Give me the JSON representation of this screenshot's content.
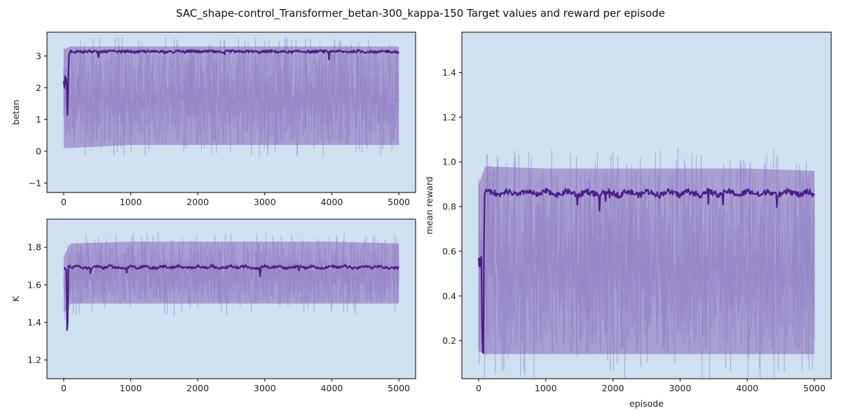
{
  "figure": {
    "title": "SAC_shape-control_Transformer_betan-300_kappa-150 Target values and reward per episode",
    "background": "#ffffff",
    "axes_facecolor": "#cfe0f1",
    "band_color": "#9b89c7",
    "line_color": "#4b1e8a"
  },
  "chart_data": [
    {
      "id": "betan",
      "type": "line",
      "title": "",
      "xlabel": "",
      "ylabel": "betan",
      "xlim": [
        -250,
        5250
      ],
      "ylim": [
        -1.3,
        3.75
      ],
      "xticks": [
        0,
        1000,
        2000,
        3000,
        4000,
        5000
      ],
      "yticks": [
        -1,
        0,
        1,
        2,
        3
      ],
      "series": [
        {
          "role": "mean",
          "x": [
            0,
            10,
            20,
            30,
            40,
            50,
            55,
            60,
            70,
            80,
            90,
            100,
            150,
            200,
            250,
            300,
            400,
            500,
            600,
            700,
            800,
            900,
            1000,
            1100,
            1200,
            1300,
            1400,
            1500,
            1600,
            1700,
            1800,
            1900,
            2000,
            2100,
            2200,
            2300,
            2400,
            2500,
            2600,
            2700,
            2800,
            2900,
            3000,
            3100,
            3200,
            3300,
            3400,
            3500,
            3600,
            3700,
            3800,
            3900,
            4000,
            4100,
            4200,
            4300,
            4400,
            4500,
            4600,
            4700,
            4800,
            4900,
            5000
          ],
          "y": [
            2.2,
            2.0,
            2.35,
            2.1,
            2.3,
            1.6,
            1.15,
            1.3,
            2.4,
            3.05,
            3.1,
            3.15,
            3.12,
            3.15,
            3.14,
            3.13,
            3.15,
            3.12,
            3.14,
            3.15,
            3.13,
            3.15,
            3.14,
            3.12,
            3.15,
            3.13,
            3.15,
            3.14,
            3.12,
            3.15,
            3.13,
            3.15,
            3.14,
            3.13,
            3.15,
            3.12,
            3.14,
            3.15,
            3.13,
            3.14,
            3.15,
            3.12,
            3.14,
            3.15,
            3.13,
            3.14,
            3.12,
            3.15,
            3.14,
            3.13,
            3.15,
            3.14,
            3.12,
            3.15,
            3.13,
            3.14,
            3.15,
            3.13,
            3.14,
            3.12,
            3.15,
            3.14,
            3.13
          ]
        },
        {
          "role": "band",
          "x": [
            0,
            100,
            1000,
            2000,
            3000,
            4000,
            5000
          ],
          "upper": [
            3.2,
            3.3,
            3.3,
            3.3,
            3.3,
            3.3,
            3.3
          ],
          "lower": [
            0.1,
            0.1,
            0.2,
            0.2,
            0.2,
            0.2,
            0.2
          ]
        }
      ]
    },
    {
      "id": "kappa",
      "type": "line",
      "title": "",
      "xlabel": "",
      "ylabel": "K",
      "xlim": [
        -250,
        5250
      ],
      "ylim": [
        1.1,
        1.95
      ],
      "xticks": [
        0,
        1000,
        2000,
        3000,
        4000,
        5000
      ],
      "yticks": [
        1.2,
        1.4,
        1.6,
        1.8
      ],
      "series": [
        {
          "role": "mean",
          "x": [
            0,
            20,
            40,
            50,
            60,
            70,
            80,
            90,
            100,
            200,
            300,
            400,
            500,
            600,
            700,
            800,
            900,
            1000,
            1100,
            1200,
            1300,
            1400,
            1500,
            1600,
            1700,
            1800,
            1900,
            2000,
            2100,
            2200,
            2300,
            2400,
            2500,
            2600,
            2700,
            2800,
            2900,
            3000,
            3100,
            3200,
            3300,
            3400,
            3500,
            3600,
            3700,
            3800,
            3900,
            4000,
            4100,
            4200,
            4300,
            4400,
            4500,
            4600,
            4700,
            4800,
            4900,
            5000
          ],
          "y": [
            1.69,
            1.69,
            1.68,
            1.36,
            1.4,
            1.7,
            1.69,
            1.7,
            1.69,
            1.7,
            1.69,
            1.69,
            1.7,
            1.69,
            1.7,
            1.69,
            1.69,
            1.7,
            1.69,
            1.7,
            1.69,
            1.69,
            1.7,
            1.69,
            1.7,
            1.69,
            1.69,
            1.7,
            1.69,
            1.7,
            1.69,
            1.69,
            1.7,
            1.69,
            1.7,
            1.69,
            1.69,
            1.7,
            1.69,
            1.7,
            1.69,
            1.69,
            1.7,
            1.69,
            1.7,
            1.69,
            1.69,
            1.7,
            1.69,
            1.7,
            1.69,
            1.69,
            1.7,
            1.69,
            1.7,
            1.69,
            1.69,
            1.69
          ]
        },
        {
          "role": "band",
          "x": [
            0,
            100,
            1000,
            2000,
            3000,
            4000,
            5000
          ],
          "upper": [
            1.75,
            1.82,
            1.83,
            1.83,
            1.83,
            1.83,
            1.82
          ],
          "lower": [
            1.45,
            1.5,
            1.5,
            1.5,
            1.5,
            1.5,
            1.5
          ]
        }
      ]
    },
    {
      "id": "reward",
      "type": "line",
      "title": "",
      "xlabel": "episode",
      "ylabel": "mean reward",
      "xlim": [
        -250,
        5250
      ],
      "ylim": [
        0.03,
        1.58
      ],
      "xticks": [
        0,
        1000,
        2000,
        3000,
        4000,
        5000
      ],
      "yticks": [
        0.2,
        0.4,
        0.6,
        0.8,
        1.0,
        1.2,
        1.4
      ],
      "series": [
        {
          "role": "mean",
          "x": [
            0,
            10,
            20,
            30,
            40,
            50,
            60,
            70,
            80,
            90,
            100,
            150,
            200,
            300,
            400,
            500,
            600,
            700,
            800,
            900,
            1000,
            1100,
            1200,
            1300,
            1400,
            1500,
            1600,
            1700,
            1800,
            1900,
            2000,
            2100,
            2200,
            2300,
            2400,
            2500,
            2600,
            2700,
            2800,
            2900,
            3000,
            3100,
            3200,
            3300,
            3400,
            3500,
            3600,
            3700,
            3800,
            3900,
            4000,
            4100,
            4200,
            4300,
            4400,
            4500,
            4600,
            4700,
            4800,
            4900,
            5000
          ],
          "y": [
            0.56,
            0.52,
            0.58,
            0.54,
            0.57,
            0.3,
            0.15,
            0.15,
            0.62,
            0.85,
            0.88,
            0.86,
            0.87,
            0.85,
            0.87,
            0.86,
            0.85,
            0.87,
            0.86,
            0.85,
            0.87,
            0.86,
            0.85,
            0.87,
            0.86,
            0.85,
            0.87,
            0.86,
            0.85,
            0.87,
            0.86,
            0.85,
            0.87,
            0.86,
            0.85,
            0.87,
            0.86,
            0.85,
            0.87,
            0.86,
            0.85,
            0.87,
            0.86,
            0.85,
            0.87,
            0.86,
            0.85,
            0.87,
            0.86,
            0.85,
            0.87,
            0.86,
            0.85,
            0.87,
            0.86,
            0.85,
            0.87,
            0.86,
            0.85,
            0.87,
            0.85
          ]
        },
        {
          "role": "band",
          "x": [
            0,
            100,
            1000,
            2000,
            3000,
            4000,
            5000
          ],
          "upper": [
            0.9,
            0.98,
            0.97,
            0.97,
            0.97,
            0.97,
            0.96
          ],
          "lower": [
            0.15,
            0.14,
            0.14,
            0.14,
            0.14,
            0.14,
            0.14
          ]
        }
      ]
    }
  ]
}
